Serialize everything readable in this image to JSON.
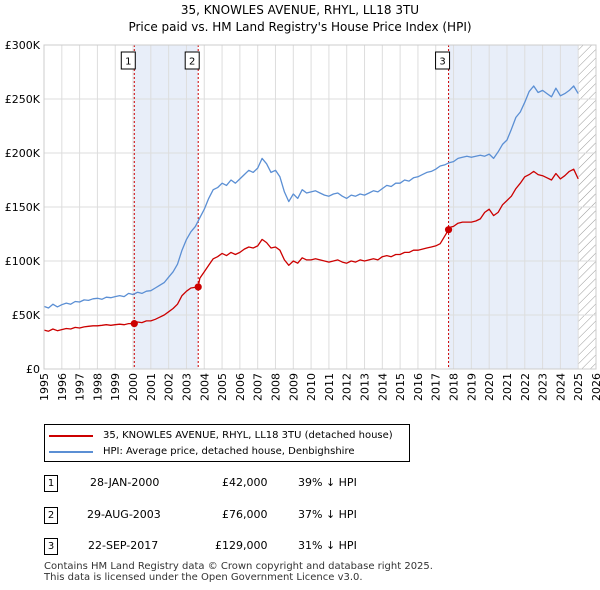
{
  "title": "35, KNOWLES AVENUE, RHYL, LL18 3TU",
  "subtitle": "Price paid vs. HM Land Registry's House Price Index (HPI)",
  "colors": {
    "property": "#cc0000",
    "hpi": "#5b8fd4",
    "shade": "#e8eef9",
    "hatch": "#999999",
    "grid": "#dddddd"
  },
  "legend": {
    "property_label": "35, KNOWLES AVENUE, RHYL, LL18 3TU (detached house)",
    "hpi_label": "HPI: Average price, detached house, Denbighshire"
  },
  "events": [
    {
      "num": "1",
      "date": "28-JAN-2000",
      "price": "£42,000",
      "delta": "39% ↓ HPI"
    },
    {
      "num": "2",
      "date": "29-AUG-2003",
      "price": "£76,000",
      "delta": "37% ↓ HPI"
    },
    {
      "num": "3",
      "date": "22-SEP-2017",
      "price": "£129,000",
      "delta": "31% ↓ HPI"
    }
  ],
  "footer": {
    "line1": "Contains HM Land Registry data © Crown copyright and database right 2025.",
    "line2": "This data is licensed under the Open Government Licence v3.0."
  },
  "chart_data": {
    "type": "line",
    "title": "35, KNOWLES AVENUE, RHYL, LL18 3TU",
    "subtitle": "Price paid vs. HM Land Registry's House Price Index (HPI)",
    "xlabel": "",
    "ylabel": "",
    "xlim": [
      1995,
      2026
    ],
    "ylim": [
      0,
      300000
    ],
    "x_ticks": [
      1995,
      1996,
      1997,
      1998,
      1999,
      2000,
      2001,
      2002,
      2003,
      2004,
      2005,
      2006,
      2007,
      2008,
      2009,
      2010,
      2011,
      2012,
      2013,
      2014,
      2015,
      2016,
      2017,
      2018,
      2019,
      2020,
      2021,
      2022,
      2023,
      2024,
      2025,
      2026
    ],
    "y_ticks": [
      0,
      50000,
      100000,
      150000,
      200000,
      250000,
      300000
    ],
    "y_tick_labels": [
      "£0",
      "£50K",
      "£100K",
      "£150K",
      "£200K",
      "£250K",
      "£300K"
    ],
    "grid": true,
    "shaded_ranges": [
      [
        2000.07,
        2003.66
      ],
      [
        2017.72,
        2025.0
      ]
    ],
    "future_hatch_from": 2025.0,
    "series": [
      {
        "name": "HPI: Average price, detached house, Denbighshire",
        "x": [
          1995.0,
          1995.25,
          1995.5,
          1995.75,
          1996.0,
          1996.25,
          1996.5,
          1996.75,
          1997.0,
          1997.25,
          1997.5,
          1997.75,
          1998.0,
          1998.25,
          1998.5,
          1998.75,
          1999.0,
          1999.25,
          1999.5,
          1999.75,
          2000.0,
          2000.25,
          2000.5,
          2000.75,
          2001.0,
          2001.25,
          2001.5,
          2001.75,
          2002.0,
          2002.25,
          2002.5,
          2002.75,
          2003.0,
          2003.25,
          2003.5,
          2003.75,
          2004.0,
          2004.25,
          2004.5,
          2004.75,
          2005.0,
          2005.25,
          2005.5,
          2005.75,
          2006.0,
          2006.25,
          2006.5,
          2006.75,
          2007.0,
          2007.25,
          2007.5,
          2007.75,
          2008.0,
          2008.25,
          2008.5,
          2008.75,
          2009.0,
          2009.25,
          2009.5,
          2009.75,
          2010.0,
          2010.25,
          2010.5,
          2010.75,
          2011.0,
          2011.25,
          2011.5,
          2011.75,
          2012.0,
          2012.25,
          2012.5,
          2012.75,
          2013.0,
          2013.25,
          2013.5,
          2013.75,
          2014.0,
          2014.25,
          2014.5,
          2014.75,
          2015.0,
          2015.25,
          2015.5,
          2015.75,
          2016.0,
          2016.25,
          2016.5,
          2016.75,
          2017.0,
          2017.25,
          2017.5,
          2017.75,
          2018.0,
          2018.25,
          2018.5,
          2018.75,
          2019.0,
          2019.25,
          2019.5,
          2019.75,
          2020.0,
          2020.25,
          2020.5,
          2020.75,
          2021.0,
          2021.25,
          2021.5,
          2021.75,
          2022.0,
          2022.25,
          2022.5,
          2022.75,
          2023.0,
          2023.25,
          2023.5,
          2023.75,
          2024.0,
          2024.25,
          2024.5,
          2024.75,
          2025.0
        ],
        "values": [
          58000,
          56500,
          60000,
          57500,
          59500,
          61000,
          60000,
          62500,
          62000,
          64000,
          63500,
          65000,
          65500,
          64500,
          66500,
          66000,
          67000,
          68000,
          67000,
          70000,
          69000,
          71000,
          70000,
          72000,
          72500,
          75000,
          77500,
          80000,
          85000,
          90000,
          97000,
          110000,
          120000,
          127000,
          132000,
          140000,
          148000,
          158000,
          166000,
          168000,
          172000,
          170000,
          175000,
          172000,
          176000,
          180000,
          184000,
          182000,
          186000,
          195000,
          190000,
          182000,
          184000,
          178000,
          164000,
          155000,
          162000,
          158000,
          166000,
          163000,
          164000,
          165000,
          163000,
          161000,
          160000,
          162000,
          163000,
          160000,
          158000,
          161000,
          160000,
          162000,
          161000,
          163000,
          165000,
          164000,
          167000,
          170000,
          169000,
          172000,
          172000,
          175000,
          174000,
          177000,
          178000,
          180000,
          182000,
          183000,
          185000,
          188000,
          189000,
          191000,
          192000,
          195000,
          196000,
          197000,
          196000,
          197000,
          198000,
          197000,
          199000,
          195000,
          201000,
          208000,
          212000,
          222000,
          233000,
          238000,
          247000,
          257000,
          262000,
          256000,
          258000,
          255000,
          252000,
          260000,
          253000,
          255000,
          258000,
          262000,
          255000
        ],
        "color": "#5b8fd4"
      },
      {
        "name": "35, KNOWLES AVENUE, RHYL, LL18 3TU (detached house)",
        "x": [
          1995.0,
          1995.25,
          1995.5,
          1995.75,
          1996.0,
          1996.25,
          1996.5,
          1996.75,
          1997.0,
          1997.25,
          1997.5,
          1997.75,
          1998.0,
          1998.25,
          1998.5,
          1998.75,
          1999.0,
          1999.25,
          1999.5,
          1999.75,
          2000.07,
          2000.25,
          2000.5,
          2000.75,
          2001.0,
          2001.25,
          2001.5,
          2001.75,
          2002.0,
          2002.25,
          2002.5,
          2002.75,
          2003.0,
          2003.25,
          2003.66,
          2003.75,
          2004.0,
          2004.25,
          2004.5,
          2004.75,
          2005.0,
          2005.25,
          2005.5,
          2005.75,
          2006.0,
          2006.25,
          2006.5,
          2006.75,
          2007.0,
          2007.25,
          2007.5,
          2007.75,
          2008.0,
          2008.25,
          2008.5,
          2008.75,
          2009.0,
          2009.25,
          2009.5,
          2009.75,
          2010.0,
          2010.25,
          2010.5,
          2010.75,
          2011.0,
          2011.25,
          2011.5,
          2011.75,
          2012.0,
          2012.25,
          2012.5,
          2012.75,
          2013.0,
          2013.25,
          2013.5,
          2013.75,
          2014.0,
          2014.25,
          2014.5,
          2014.75,
          2015.0,
          2015.25,
          2015.5,
          2015.75,
          2016.0,
          2016.25,
          2016.5,
          2016.75,
          2017.0,
          2017.25,
          2017.72,
          2017.75,
          2018.0,
          2018.25,
          2018.5,
          2018.75,
          2019.0,
          2019.25,
          2019.5,
          2019.75,
          2020.0,
          2020.25,
          2020.5,
          2020.75,
          2021.0,
          2021.25,
          2021.5,
          2021.75,
          2022.0,
          2022.25,
          2022.5,
          2022.75,
          2023.0,
          2023.25,
          2023.5,
          2023.75,
          2024.0,
          2024.25,
          2024.5,
          2024.75,
          2025.0
        ],
        "values": [
          36000,
          35000,
          37000,
          35500,
          36500,
          37500,
          37000,
          38500,
          38000,
          39000,
          39500,
          40000,
          40000,
          40500,
          41000,
          40500,
          41000,
          41500,
          41000,
          42000,
          42000,
          43500,
          43000,
          44500,
          44500,
          46000,
          48000,
          50000,
          53000,
          56000,
          60000,
          68000,
          72000,
          75000,
          76000,
          84000,
          90000,
          96000,
          102000,
          104000,
          107000,
          105000,
          108000,
          106000,
          108000,
          111000,
          113000,
          112000,
          114000,
          120000,
          117000,
          112000,
          113000,
          110000,
          101000,
          96000,
          100000,
          98000,
          103000,
          101000,
          101000,
          102000,
          101000,
          100000,
          99000,
          100000,
          101000,
          99000,
          98000,
          100000,
          99000,
          101000,
          100000,
          101000,
          102000,
          101000,
          104000,
          105000,
          104000,
          106000,
          106000,
          108000,
          108000,
          110000,
          110000,
          111000,
          112000,
          113000,
          114000,
          116000,
          129000,
          131000,
          132000,
          135000,
          136000,
          136000,
          136000,
          137000,
          139000,
          145000,
          148000,
          142000,
          145000,
          152000,
          156000,
          160000,
          167000,
          172000,
          178000,
          180000,
          183000,
          180000,
          179000,
          177000,
          175000,
          181000,
          176000,
          179000,
          183000,
          185000,
          176000
        ],
        "color": "#cc0000"
      }
    ],
    "sales": [
      {
        "label": "1",
        "x": 2000.07,
        "y": 42000
      },
      {
        "label": "2",
        "x": 2003.66,
        "y": 76000
      },
      {
        "label": "3",
        "x": 2017.72,
        "y": 129000
      }
    ]
  }
}
